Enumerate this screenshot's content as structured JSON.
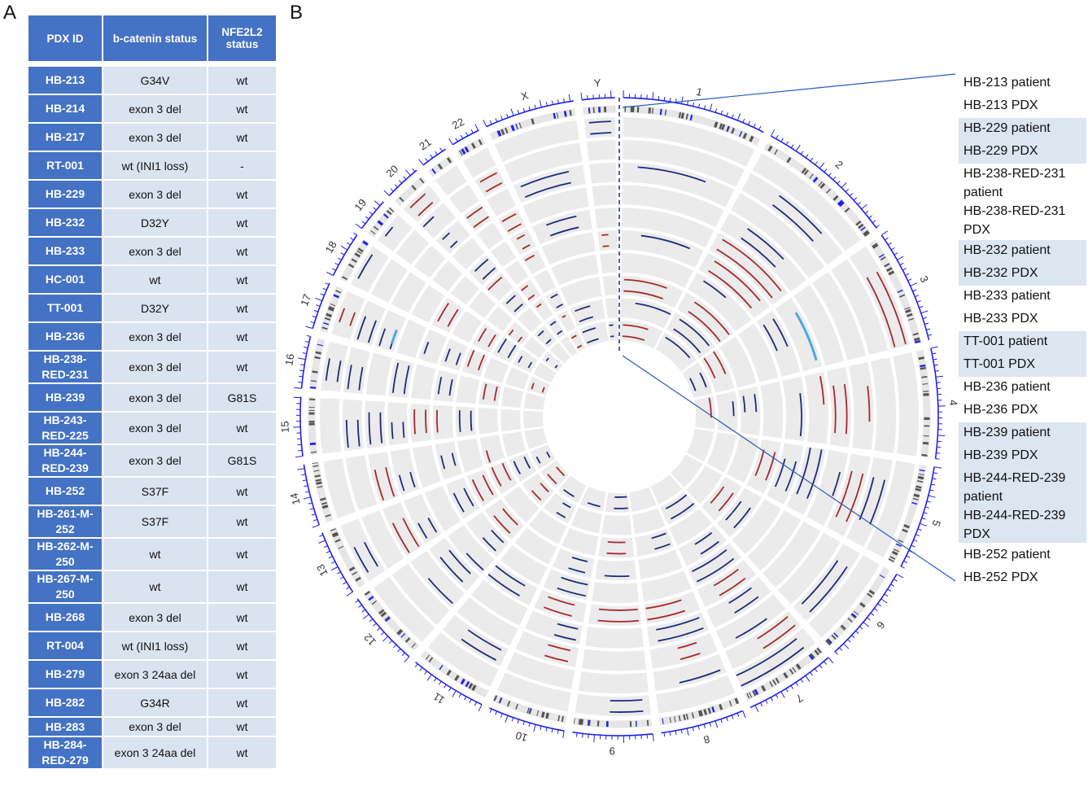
{
  "panels": {
    "a": "A",
    "b": "B"
  },
  "table": {
    "headers": [
      "PDX ID",
      "b-catenin status",
      "NFE2L2 status"
    ],
    "rows": [
      {
        "id": "HB-213",
        "bcat": "G34V",
        "nfe2l2": "wt"
      },
      {
        "id": "HB-214",
        "bcat": "exon 3 del",
        "nfe2l2": "wt"
      },
      {
        "id": "HB-217",
        "bcat": "exon 3 del",
        "nfe2l2": "wt"
      },
      {
        "id": "RT-001",
        "bcat": "wt (INI1 loss)",
        "nfe2l2": "-"
      },
      {
        "id": "HB-229",
        "bcat": "exon 3 del",
        "nfe2l2": "wt"
      },
      {
        "id": "HB-232",
        "bcat": "D32Y",
        "nfe2l2": "wt"
      },
      {
        "id": "HB-233",
        "bcat": "exon 3 del",
        "nfe2l2": "wt"
      },
      {
        "id": "HC-001",
        "bcat": "wt",
        "nfe2l2": "wt"
      },
      {
        "id": "TT-001",
        "bcat": "D32Y",
        "nfe2l2": "wt"
      },
      {
        "id": "HB-236",
        "bcat": "exon 3 del",
        "nfe2l2": "wt"
      },
      {
        "id": "HB-238-RED-231",
        "bcat": "exon 3 del",
        "nfe2l2": "wt"
      },
      {
        "id": "HB-239",
        "bcat": "exon 3 del",
        "nfe2l2": "G81S"
      },
      {
        "id": "HB-243-RED-225",
        "bcat": "exon 3 del",
        "nfe2l2": "wt"
      },
      {
        "id": "HB-244-RED-239",
        "bcat": "exon 3 del",
        "nfe2l2": "G81S"
      },
      {
        "id": "HB-252",
        "bcat": "S37F",
        "nfe2l2": "wt"
      },
      {
        "id": "HB-261-M-252",
        "bcat": "S37F",
        "nfe2l2": "wt"
      },
      {
        "id": "HB-262-M-250",
        "bcat": "wt",
        "nfe2l2": "wt"
      },
      {
        "id": "HB-267-M-250",
        "bcat": "wt",
        "nfe2l2": "wt"
      },
      {
        "id": "HB-268",
        "bcat": "exon 3 del",
        "nfe2l2": "wt"
      },
      {
        "id": "RT-004",
        "bcat": "wt (INI1 loss)",
        "nfe2l2": "wt"
      },
      {
        "id": "HB-279",
        "bcat": "exon 3 24aa del",
        "nfe2l2": "wt"
      },
      {
        "id": "HB-282",
        "bcat": "G34R",
        "nfe2l2": "wt"
      },
      {
        "id": "HB-283",
        "bcat": "exon 3 del",
        "nfe2l2": "wt"
      },
      {
        "id": "HB-284-RED-279",
        "bcat": "exon 3 24aa del",
        "nfe2l2": "wt"
      }
    ]
  },
  "circos": {
    "chromosomes": [
      "1",
      "2",
      "3",
      "4",
      "5",
      "6",
      "7",
      "8",
      "9",
      "10",
      "11",
      "12",
      "13",
      "14",
      "15",
      "16",
      "17",
      "18",
      "19",
      "20",
      "21",
      "22",
      "X",
      "Y"
    ],
    "chrom_lengths_mb": [
      249,
      242,
      198,
      190,
      181,
      171,
      159,
      145,
      138,
      134,
      135,
      133,
      114,
      107,
      102,
      90,
      83,
      80,
      59,
      64,
      47,
      51,
      156,
      57
    ],
    "colors": {
      "gain": "#a8282b",
      "loss": "#1f2a7a",
      "loh": "#4aa8e0",
      "ideogram": "#2020ee",
      "track": "#ebebeb"
    }
  },
  "legend": [
    {
      "label": "HB-213 patient",
      "shaded": false
    },
    {
      "label": "HB-213 PDX",
      "shaded": false
    },
    {
      "label": "HB-229 patient",
      "shaded": true
    },
    {
      "label": "HB-229 PDX",
      "shaded": true
    },
    {
      "label": "HB-238-RED-231 patient",
      "shaded": false
    },
    {
      "label": "HB-238-RED-231 PDX",
      "shaded": false
    },
    {
      "label": "HB-232 patient",
      "shaded": true
    },
    {
      "label": "HB-232 PDX",
      "shaded": true
    },
    {
      "label": "HB-233 patient",
      "shaded": false
    },
    {
      "label": "HB-233 PDX",
      "shaded": false
    },
    {
      "label": "TT-001 patient",
      "shaded": true
    },
    {
      "label": "TT-001 PDX",
      "shaded": true
    },
    {
      "label": "HB-236 patient",
      "shaded": false
    },
    {
      "label": "HB-236 PDX",
      "shaded": false
    },
    {
      "label": "HB-239 patient",
      "shaded": true
    },
    {
      "label": "HB-239 PDX",
      "shaded": true
    },
    {
      "label": "HB-244-RED-239 patient",
      "shaded": true
    },
    {
      "label": "HB-244-RED-239 PDX",
      "shaded": true
    },
    {
      "label": "HB-252 patient",
      "shaded": false
    },
    {
      "label": "HB-252 PDX",
      "shaded": false
    }
  ]
}
